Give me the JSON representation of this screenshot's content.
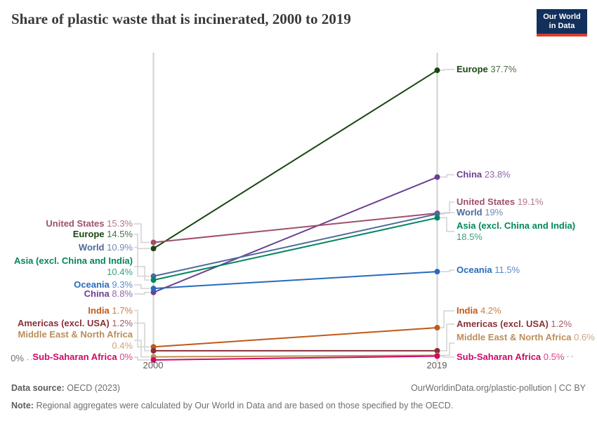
{
  "header": {
    "title": "Share of plastic waste that is incinerated, 2000 to 2019",
    "logo": {
      "line1": "Our World",
      "line2": "in Data"
    }
  },
  "chart_data": {
    "type": "line",
    "subtype": "slope",
    "title": "Share of plastic waste that is incinerated, 2000 to 2019",
    "x": [
      2000,
      2019
    ],
    "x_tick_labels": [
      "2000",
      "2019"
    ],
    "xlabel": "",
    "ylabel": "",
    "unit": "%",
    "ylim": [
      0,
      40
    ],
    "y_axis": {
      "zero_label": "0%",
      "gridlines": "dashed zero line only"
    },
    "legend_position": "inline labels left and right of slopes",
    "series": [
      {
        "name": "Europe",
        "values": [
          14.5,
          37.7
        ],
        "value_labels": [
          "14.5%",
          "37.7%"
        ],
        "color": "#18470f"
      },
      {
        "name": "China",
        "values": [
          8.8,
          23.8
        ],
        "value_labels": [
          "8.8%",
          "23.8%"
        ],
        "color": "#6d3e91"
      },
      {
        "name": "United States",
        "values": [
          15.3,
          19.1
        ],
        "value_labels": [
          "15.3%",
          "19.1%"
        ],
        "color": "#a0506b"
      },
      {
        "name": "World",
        "values": [
          10.9,
          19
        ],
        "value_labels": [
          "10.9%",
          "19%"
        ],
        "color": "#4c6a9c"
      },
      {
        "name": "Asia (excl. China and India)",
        "values": [
          10.4,
          18.5
        ],
        "value_labels": [
          "10.4%",
          "18.5%"
        ],
        "color": "#00875e"
      },
      {
        "name": "Oceania",
        "values": [
          9.3,
          11.5
        ],
        "value_labels": [
          "9.3%",
          "11.5%"
        ],
        "color": "#286bbb"
      },
      {
        "name": "India",
        "values": [
          1.7,
          4.2
        ],
        "value_labels": [
          "1.7%",
          "4.2%"
        ],
        "color": "#c05917"
      },
      {
        "name": "Americas (excl. USA)",
        "values": [
          1.2,
          1.2
        ],
        "value_labels": [
          "1.2%",
          "1.2%"
        ],
        "color": "#883039"
      },
      {
        "name": "Middle East & North Africa",
        "values": [
          0.4,
          0.6
        ],
        "value_labels": [
          "0.4%",
          "0.6%"
        ],
        "color": "#bc8e5a"
      },
      {
        "name": "Sub-Saharan Africa",
        "values": [
          0,
          0.5
        ],
        "value_labels": [
          "0%",
          "0.5%"
        ],
        "color": "#cf0a66"
      }
    ]
  },
  "footer": {
    "source_label": "Data source:",
    "source_value": "OECD (2023)",
    "url_credit": "OurWorldinData.org/plastic-pollution | CC BY",
    "note_label": "Note:",
    "note_value": "Regional aggregates were calculated by Our World in Data and are based on those specified by the OECD."
  }
}
